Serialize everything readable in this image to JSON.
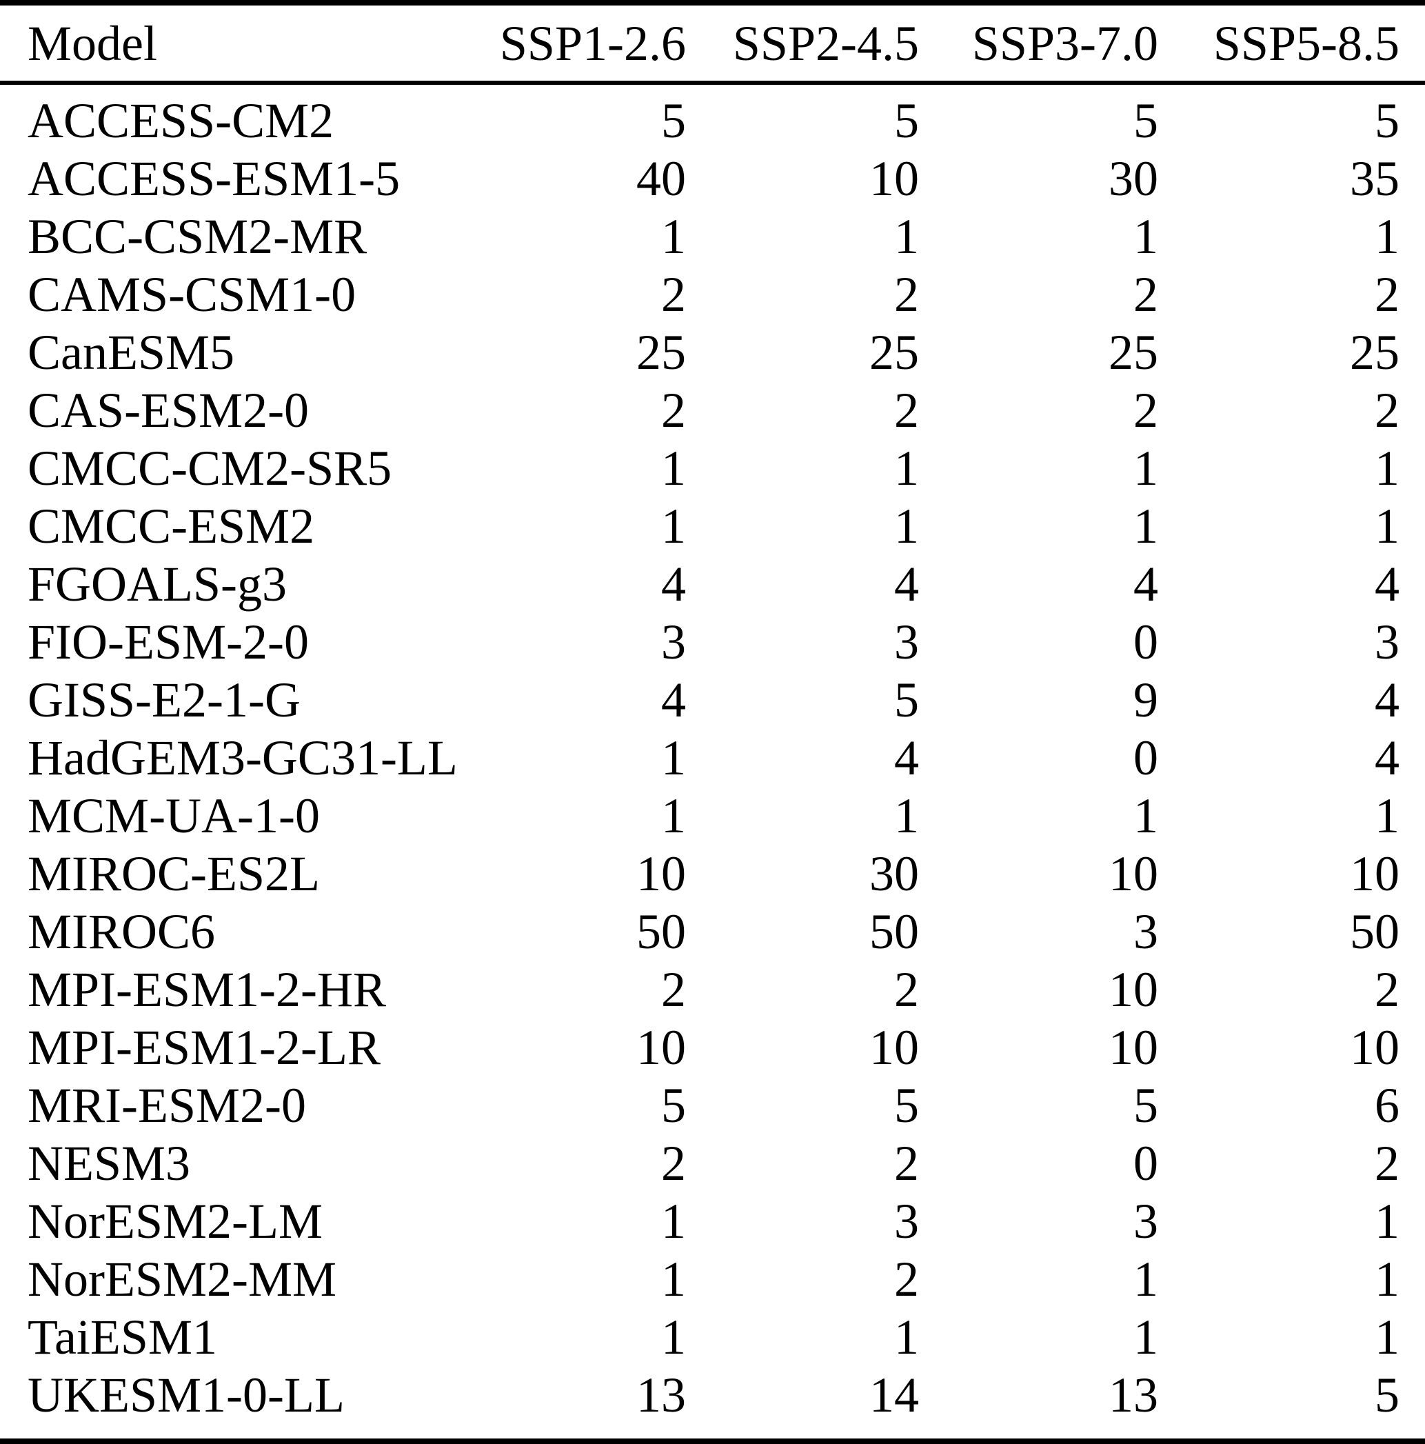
{
  "colors": {
    "background": "#ffffff",
    "text": "#000000",
    "rule": "#000000"
  },
  "table": {
    "columns": [
      "Model",
      "SSP1-2.6",
      "SSP2-4.5",
      "SSP3-7.0",
      "SSP5-8.5"
    ],
    "rows": [
      {
        "model": "ACCESS-CM2",
        "values": [
          5,
          5,
          5,
          5
        ]
      },
      {
        "model": "ACCESS-ESM1-5",
        "values": [
          40,
          10,
          30,
          35
        ]
      },
      {
        "model": "BCC-CSM2-MR",
        "values": [
          1,
          1,
          1,
          1
        ]
      },
      {
        "model": "CAMS-CSM1-0",
        "values": [
          2,
          2,
          2,
          2
        ]
      },
      {
        "model": "CanESM5",
        "values": [
          25,
          25,
          25,
          25
        ]
      },
      {
        "model": "CAS-ESM2-0",
        "values": [
          2,
          2,
          2,
          2
        ]
      },
      {
        "model": "CMCC-CM2-SR5",
        "values": [
          1,
          1,
          1,
          1
        ]
      },
      {
        "model": "CMCC-ESM2",
        "values": [
          1,
          1,
          1,
          1
        ]
      },
      {
        "model": "FGOALS-g3",
        "values": [
          4,
          4,
          4,
          4
        ]
      },
      {
        "model": "FIO-ESM-2-0",
        "values": [
          3,
          3,
          0,
          3
        ]
      },
      {
        "model": "GISS-E2-1-G",
        "values": [
          4,
          5,
          9,
          4
        ]
      },
      {
        "model": "HadGEM3-GC31-LL",
        "values": [
          1,
          4,
          0,
          4
        ]
      },
      {
        "model": "MCM-UA-1-0",
        "values": [
          1,
          1,
          1,
          1
        ]
      },
      {
        "model": "MIROC-ES2L",
        "values": [
          10,
          30,
          10,
          10
        ]
      },
      {
        "model": "MIROC6",
        "values": [
          50,
          50,
          3,
          50
        ]
      },
      {
        "model": "MPI-ESM1-2-HR",
        "values": [
          2,
          2,
          10,
          2
        ]
      },
      {
        "model": "MPI-ESM1-2-LR",
        "values": [
          10,
          10,
          10,
          10
        ]
      },
      {
        "model": "MRI-ESM2-0",
        "values": [
          5,
          5,
          5,
          6
        ]
      },
      {
        "model": "NESM3",
        "values": [
          2,
          2,
          0,
          2
        ]
      },
      {
        "model": "NorESM2-LM",
        "values": [
          1,
          3,
          3,
          1
        ]
      },
      {
        "model": "NorESM2-MM",
        "values": [
          1,
          2,
          1,
          1
        ]
      },
      {
        "model": "TaiESM1",
        "values": [
          1,
          1,
          1,
          1
        ]
      },
      {
        "model": "UKESM1-0-LL",
        "values": [
          13,
          14,
          13,
          5
        ]
      }
    ]
  },
  "chart_data": {
    "type": "table",
    "title": "",
    "categories": [
      "SSP1-2.6",
      "SSP2-4.5",
      "SSP3-7.0",
      "SSP5-8.5"
    ],
    "series": [
      {
        "name": "ACCESS-CM2",
        "values": [
          5,
          5,
          5,
          5
        ]
      },
      {
        "name": "ACCESS-ESM1-5",
        "values": [
          40,
          10,
          30,
          35
        ]
      },
      {
        "name": "BCC-CSM2-MR",
        "values": [
          1,
          1,
          1,
          1
        ]
      },
      {
        "name": "CAMS-CSM1-0",
        "values": [
          2,
          2,
          2,
          2
        ]
      },
      {
        "name": "CanESM5",
        "values": [
          25,
          25,
          25,
          25
        ]
      },
      {
        "name": "CAS-ESM2-0",
        "values": [
          2,
          2,
          2,
          2
        ]
      },
      {
        "name": "CMCC-CM2-SR5",
        "values": [
          1,
          1,
          1,
          1
        ]
      },
      {
        "name": "CMCC-ESM2",
        "values": [
          1,
          1,
          1,
          1
        ]
      },
      {
        "name": "FGOALS-g3",
        "values": [
          4,
          4,
          4,
          4
        ]
      },
      {
        "name": "FIO-ESM-2-0",
        "values": [
          3,
          3,
          0,
          3
        ]
      },
      {
        "name": "GISS-E2-1-G",
        "values": [
          4,
          5,
          9,
          4
        ]
      },
      {
        "name": "HadGEM3-GC31-LL",
        "values": [
          1,
          4,
          0,
          4
        ]
      },
      {
        "name": "MCM-UA-1-0",
        "values": [
          1,
          1,
          1,
          1
        ]
      },
      {
        "name": "MIROC-ES2L",
        "values": [
          10,
          30,
          10,
          10
        ]
      },
      {
        "name": "MIROC6",
        "values": [
          50,
          50,
          3,
          50
        ]
      },
      {
        "name": "MPI-ESM1-2-HR",
        "values": [
          2,
          2,
          10,
          2
        ]
      },
      {
        "name": "MPI-ESM1-2-LR",
        "values": [
          10,
          10,
          10,
          10
        ]
      },
      {
        "name": "MRI-ESM2-0",
        "values": [
          5,
          5,
          5,
          6
        ]
      },
      {
        "name": "NESM3",
        "values": [
          2,
          2,
          0,
          2
        ]
      },
      {
        "name": "NorESM2-LM",
        "values": [
          1,
          3,
          3,
          1
        ]
      },
      {
        "name": "NorESM2-MM",
        "values": [
          1,
          2,
          1,
          1
        ]
      },
      {
        "name": "TaiESM1",
        "values": [
          1,
          1,
          1,
          1
        ]
      },
      {
        "name": "UKESM1-0-LL",
        "values": [
          13,
          14,
          13,
          5
        ]
      }
    ]
  }
}
